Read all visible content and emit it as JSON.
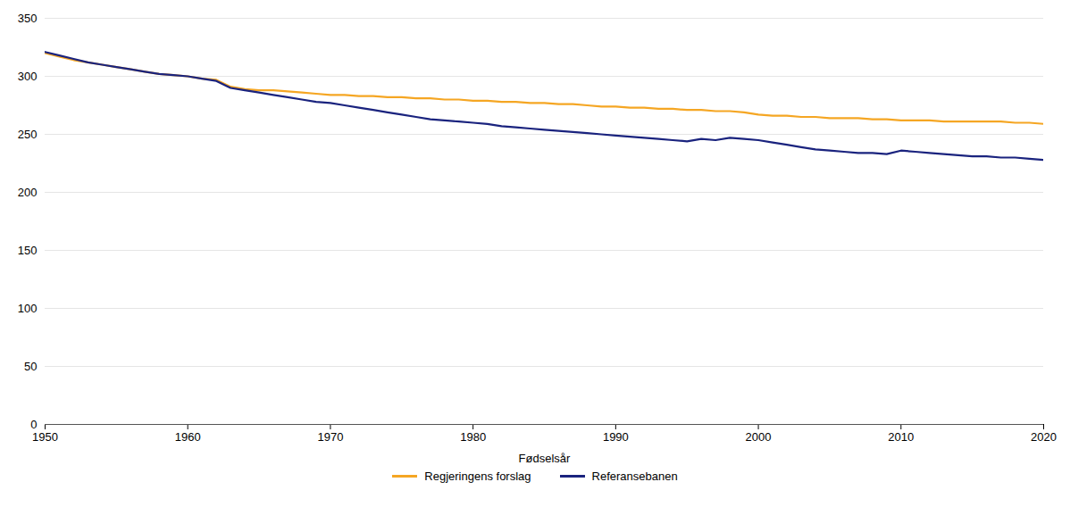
{
  "chart_data": {
    "type": "line",
    "xlabel": "Fødselsår",
    "x": [
      1950,
      1951,
      1952,
      1953,
      1954,
      1955,
      1956,
      1957,
      1958,
      1959,
      1960,
      1961,
      1962,
      1963,
      1964,
      1965,
      1966,
      1967,
      1968,
      1969,
      1970,
      1971,
      1972,
      1973,
      1974,
      1975,
      1976,
      1977,
      1978,
      1979,
      1980,
      1981,
      1982,
      1983,
      1984,
      1985,
      1986,
      1987,
      1988,
      1989,
      1990,
      1991,
      1992,
      1993,
      1994,
      1995,
      1996,
      1997,
      1998,
      1999,
      2000,
      2001,
      2002,
      2003,
      2004,
      2005,
      2006,
      2007,
      2008,
      2009,
      2010,
      2011,
      2012,
      2013,
      2014,
      2015,
      2016,
      2017,
      2018,
      2019,
      2020
    ],
    "series": [
      {
        "name": "Regjeringens forslag",
        "color": "#F5A623",
        "values": [
          320,
          317,
          314,
          312,
          310,
          308,
          306,
          304,
          302,
          301,
          300,
          298,
          297,
          291,
          289,
          288,
          288,
          287,
          286,
          285,
          284,
          284,
          283,
          283,
          282,
          282,
          281,
          281,
          280,
          280,
          279,
          279,
          278,
          278,
          277,
          277,
          276,
          276,
          275,
          274,
          274,
          273,
          273,
          272,
          272,
          271,
          271,
          270,
          270,
          269,
          267,
          266,
          266,
          265,
          265,
          264,
          264,
          264,
          263,
          263,
          262,
          262,
          262,
          261,
          261,
          261,
          261,
          261,
          260,
          260,
          259
        ]
      },
      {
        "name": "Referansebanen",
        "color": "#1a237e",
        "values": [
          321,
          318,
          315,
          312,
          310,
          308,
          306,
          304,
          302,
          301,
          300,
          298,
          296,
          290,
          288,
          286,
          284,
          282,
          280,
          278,
          277,
          275,
          273,
          271,
          269,
          267,
          265,
          263,
          262,
          261,
          260,
          259,
          257,
          256,
          255,
          254,
          253,
          252,
          251,
          250,
          249,
          248,
          247,
          246,
          245,
          244,
          246,
          245,
          247,
          246,
          245,
          243,
          241,
          239,
          237,
          236,
          235,
          234,
          234,
          233,
          236,
          235,
          234,
          233,
          232,
          231,
          231,
          230,
          230,
          229,
          228
        ]
      }
    ],
    "xlim": [
      1950,
      2020
    ],
    "ylim": [
      0,
      350
    ],
    "xticks": [
      1950,
      1960,
      1970,
      1980,
      1990,
      2000,
      2010,
      2020
    ],
    "yticks": [
      0,
      50,
      100,
      150,
      200,
      250,
      300,
      350
    ],
    "grid": true,
    "legend": "bottom"
  }
}
